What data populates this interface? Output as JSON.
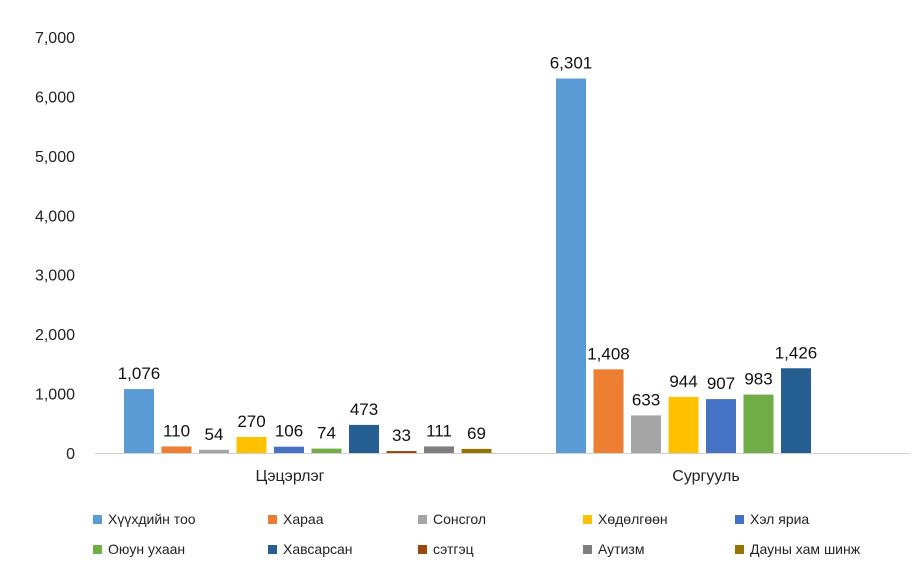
{
  "chart_data": {
    "type": "bar",
    "categories": [
      "Цэцэрлэг",
      "Сургууль"
    ],
    "series": [
      {
        "name": "Хүүхдийн тоо",
        "color": "#5B9BD5",
        "values": [
          1076,
          6301
        ]
      },
      {
        "name": "Хараа",
        "color": "#ED7D31",
        "values": [
          110,
          1408
        ]
      },
      {
        "name": "Сонсгол",
        "color": "#A5A5A5",
        "values": [
          54,
          633
        ]
      },
      {
        "name": "Хөдөлгөөн",
        "color": "#FFC000",
        "values": [
          270,
          944
        ]
      },
      {
        "name": "Хэл яриа",
        "color": "#4472C4",
        "values": [
          106,
          907
        ]
      },
      {
        "name": "Оюун ухаан",
        "color": "#70AD47",
        "values": [
          74,
          983
        ]
      },
      {
        "name": "Хавсарсан",
        "color": "#255E91",
        "values": [
          473,
          1426
        ]
      },
      {
        "name": "сэтгэц",
        "color": "#9E480E",
        "values": [
          33,
          null
        ]
      },
      {
        "name": "Аутизм",
        "color": "#7F7F7F",
        "values": [
          111,
          null
        ]
      },
      {
        "name": "Дауны хам шинж",
        "color": "#997300",
        "values": [
          69,
          null
        ]
      }
    ],
    "data_labels": [
      [
        "1,076",
        "6,301"
      ],
      [
        "110",
        "1,408"
      ],
      [
        "54",
        "633"
      ],
      [
        "270",
        "944"
      ],
      [
        "106",
        "907"
      ],
      [
        "74",
        "983"
      ],
      [
        "473",
        "1,426"
      ],
      [
        "33",
        ""
      ],
      [
        "111",
        ""
      ],
      [
        "69",
        ""
      ]
    ],
    "ylim": [
      0,
      7000
    ],
    "yticks": [
      0,
      1000,
      2000,
      3000,
      4000,
      5000,
      6000,
      7000
    ],
    "ytick_labels": [
      "0",
      "1,000",
      "2,000",
      "3,000",
      "4,000",
      "5,000",
      "6,000",
      "7,000"
    ],
    "grid": false,
    "legend_position": "bottom"
  }
}
